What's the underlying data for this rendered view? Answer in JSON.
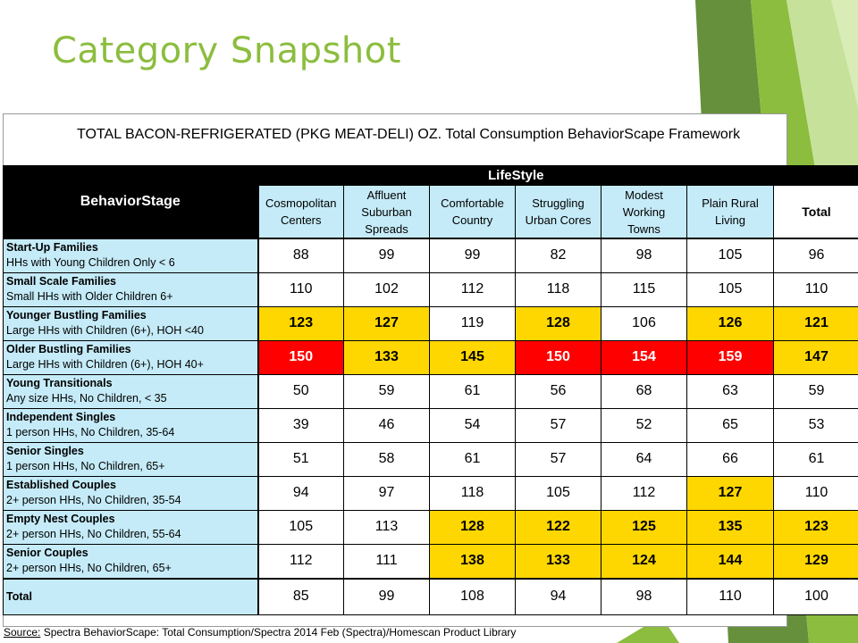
{
  "slide": {
    "title": "Category Snapshot"
  },
  "table": {
    "title": "TOTAL BACON-REFRIGERATED (PKG MEAT-DELI) OZ.  Total Consumption BehaviorScape Framework",
    "group_header": "LifeStyle",
    "row_header_label": "BehaviorStage",
    "columns": [
      {
        "line1": "Cosmopolitan",
        "line2": "Centers"
      },
      {
        "line1": "Affluent",
        "line2": "Suburban",
        "line3": "Spreads"
      },
      {
        "line1": "Comfortable",
        "line2": "Country"
      },
      {
        "line1": "Struggling",
        "line2": "Urban Cores"
      },
      {
        "line1": "Modest",
        "line2": "Working",
        "line3": "Towns"
      },
      {
        "line1": "Plain Rural",
        "line2": "Living"
      },
      {
        "line1": "Total"
      }
    ],
    "rows": [
      {
        "segment": "Start-Up Families",
        "desc": "HHs with Young Children Only < 6",
        "values": [
          "88",
          "99",
          "99",
          "82",
          "98",
          "105",
          "96"
        ],
        "shade": [
          "",
          "",
          "",
          "",
          "",
          "",
          ""
        ]
      },
      {
        "segment": "Small Scale Families",
        "desc": "Small HHs with Older Children 6+",
        "values": [
          "110",
          "102",
          "112",
          "118",
          "115",
          "105",
          "110"
        ],
        "shade": [
          "",
          "",
          "",
          "",
          "",
          "",
          ""
        ]
      },
      {
        "segment": "Younger Bustling Families",
        "desc": "Large HHs with Children (6+), HOH <40",
        "values": [
          "123",
          "127",
          "119",
          "128",
          "106",
          "126",
          "121"
        ],
        "shade": [
          "yellow",
          "yellow",
          "",
          "yellow",
          "",
          "yellow",
          "yellow"
        ]
      },
      {
        "segment": "Older Bustling Families",
        "desc": "Large HHs with Children (6+), HOH 40+",
        "values": [
          "150",
          "133",
          "145",
          "150",
          "154",
          "159",
          "147"
        ],
        "shade": [
          "red",
          "yellow",
          "yellow",
          "red",
          "red",
          "red",
          "yellow"
        ]
      },
      {
        "segment": "Young Transitionals",
        "desc": "Any size HHs, No Children, < 35",
        "values": [
          "50",
          "59",
          "61",
          "56",
          "68",
          "63",
          "59"
        ],
        "shade": [
          "",
          "",
          "",
          "",
          "",
          "",
          ""
        ]
      },
      {
        "segment": "Independent Singles",
        "desc": "1 person HHs, No Children, 35-64",
        "values": [
          "39",
          "46",
          "54",
          "57",
          "52",
          "65",
          "53"
        ],
        "shade": [
          "",
          "",
          "",
          "",
          "",
          "",
          ""
        ]
      },
      {
        "segment": "Senior Singles",
        "desc": "1 person HHs, No Children, 65+",
        "values": [
          "51",
          "58",
          "61",
          "57",
          "64",
          "66",
          "61"
        ],
        "shade": [
          "",
          "",
          "",
          "",
          "",
          "",
          ""
        ]
      },
      {
        "segment": "Established Couples",
        "desc": "2+ person HHs, No Children, 35-54",
        "values": [
          "94",
          "97",
          "118",
          "105",
          "112",
          "127",
          "110"
        ],
        "shade": [
          "",
          "",
          "",
          "",
          "",
          "yellow",
          ""
        ]
      },
      {
        "segment": "Empty Nest Couples",
        "desc": "2+ person HHs, No Children, 55-64",
        "values": [
          "105",
          "113",
          "128",
          "122",
          "125",
          "135",
          "123"
        ],
        "shade": [
          "",
          "",
          "yellow",
          "yellow",
          "yellow",
          "yellow",
          "yellow"
        ]
      },
      {
        "segment": "Senior Couples",
        "desc": "2+ person HHs, No Children, 65+",
        "values": [
          "112",
          "111",
          "138",
          "133",
          "124",
          "144",
          "129"
        ],
        "shade": [
          "",
          "",
          "yellow",
          "yellow",
          "yellow",
          "yellow",
          "yellow"
        ]
      }
    ],
    "total_row": {
      "label": "Total",
      "values": [
        "85",
        "99",
        "108",
        "94",
        "98",
        "110",
        "100"
      ]
    }
  },
  "source": {
    "label": "Source:",
    "text": " Spectra BehaviorScape: Total Consumption/Spectra 2014 Feb (Spectra)/Homescan Product Library"
  },
  "colors": {
    "title_green": "#8cbd3f",
    "header_blue": "#c5ebf8",
    "highlight_yellow": "#ffd700",
    "highlight_red": "#ff0000",
    "decor_green_dark": "#5e8a30",
    "decor_green_mid": "#8cbd3f",
    "decor_green_light": "#c6e29a"
  }
}
